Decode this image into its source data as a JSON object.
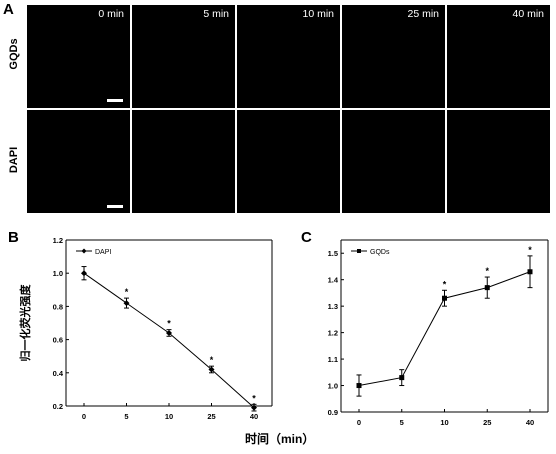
{
  "panel_a": {
    "letter": "A",
    "rows": [
      {
        "label": "GQDs"
      },
      {
        "label": "DAPI"
      }
    ],
    "time_labels": [
      "0 min",
      "5 min",
      "10 min",
      "25 min",
      "40 min"
    ]
  },
  "panel_b": {
    "letter": "B"
  },
  "panel_c": {
    "letter": "C"
  },
  "shared_xlabel": "时间（min）",
  "chart_data": [
    {
      "type": "line",
      "panel": "B",
      "x": [
        0,
        5,
        10,
        25,
        40
      ],
      "x_tick_labels": [
        "0",
        "5",
        "10",
        "25",
        "40"
      ],
      "series": [
        {
          "name": "DAPI",
          "values": [
            1.0,
            0.82,
            0.64,
            0.42,
            0.19
          ],
          "errors": [
            0.04,
            0.03,
            0.02,
            0.02,
            0.02
          ]
        }
      ],
      "significance_markers": [
        "",
        "*",
        "*",
        "*",
        "*"
      ],
      "ylabel": "归一化荧光强度",
      "ylim": [
        0.2,
        1.2
      ],
      "y_ticks": [
        "0.2",
        "0.4",
        "0.6",
        "0.8",
        "1.0",
        "1.2"
      ],
      "legend_position": "top-left",
      "marker": "diamond"
    },
    {
      "type": "line",
      "panel": "C",
      "x": [
        0,
        5,
        10,
        25,
        40
      ],
      "x_tick_labels": [
        "0",
        "5",
        "10",
        "25",
        "40"
      ],
      "series": [
        {
          "name": "GQDs",
          "values": [
            1.0,
            1.03,
            1.33,
            1.37,
            1.43
          ],
          "errors": [
            0.04,
            0.03,
            0.03,
            0.04,
            0.06
          ]
        }
      ],
      "significance_markers": [
        "",
        "",
        "*",
        "*",
        "*"
      ],
      "ylim": [
        0.9,
        1.55
      ],
      "y_ticks": [
        "0.9",
        "1.0",
        "1.1",
        "1.2",
        "1.3",
        "1.4",
        "1.5"
      ],
      "legend_position": "top-left",
      "marker": "square"
    }
  ]
}
